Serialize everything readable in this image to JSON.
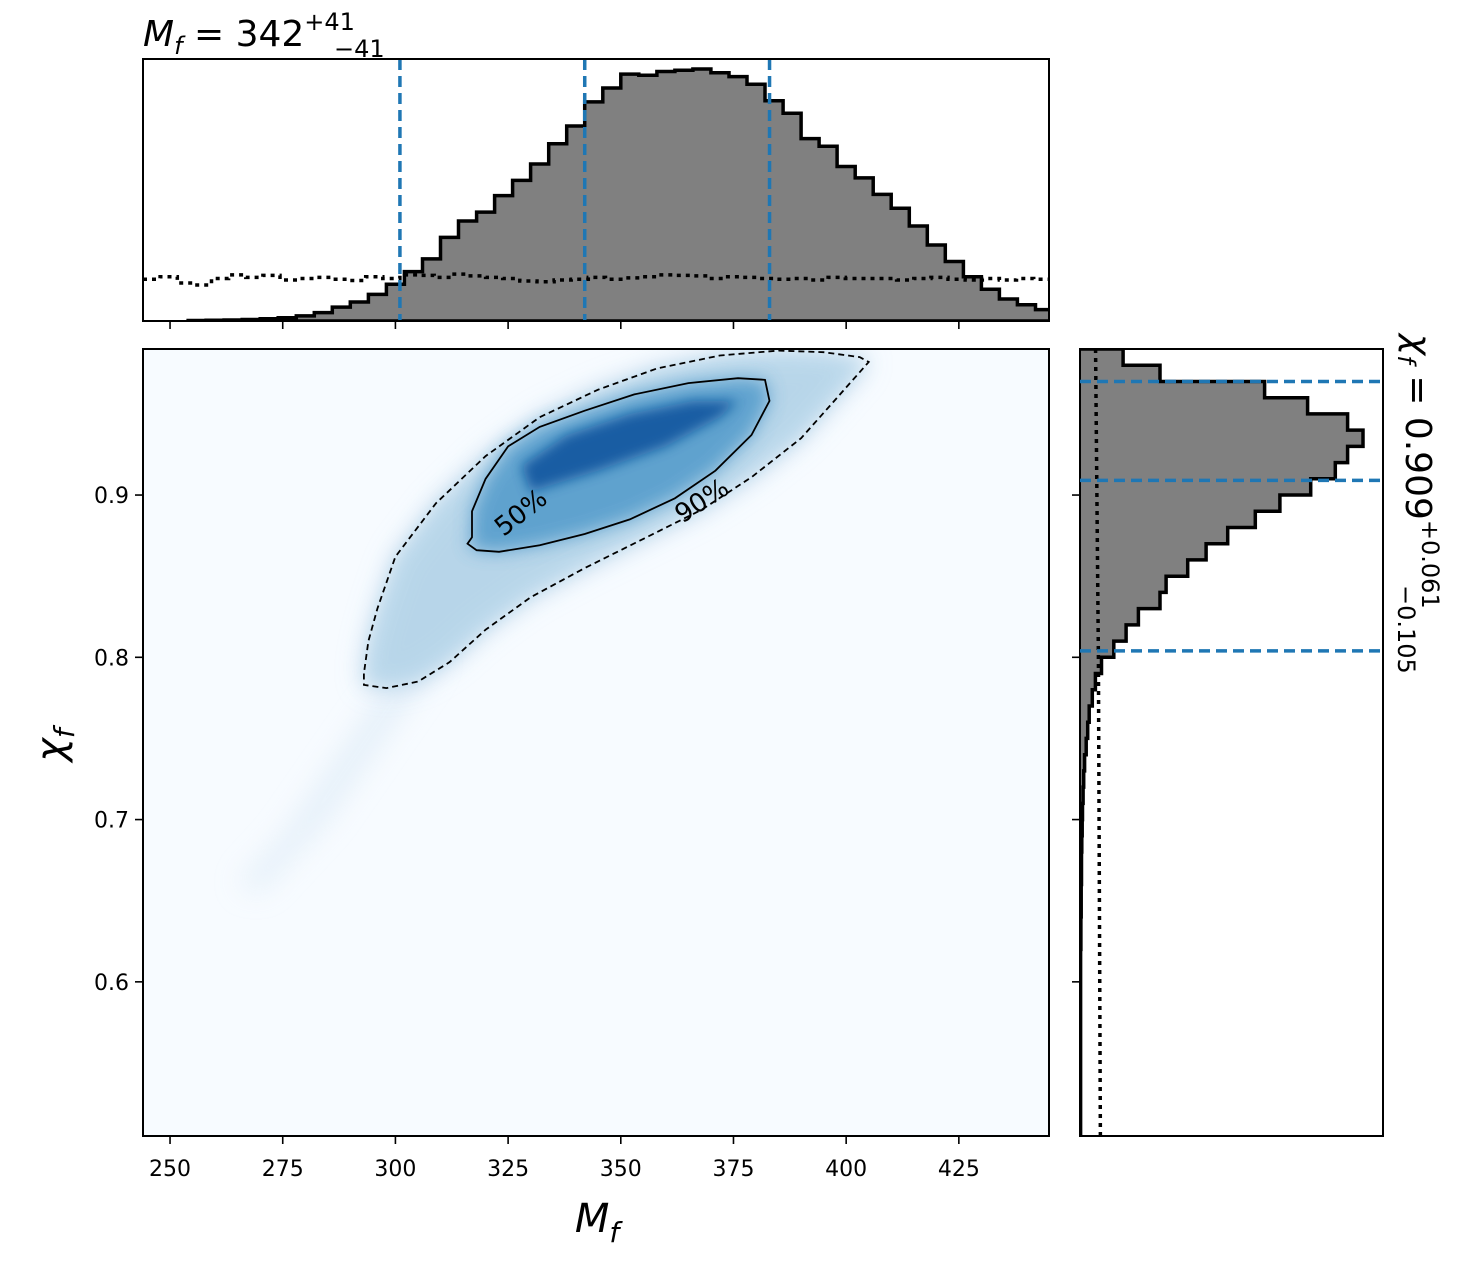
{
  "chart_data": [
    {
      "panel": "joint",
      "type": "heatmap",
      "xlabel": "M",
      "xlabel_sub": "f",
      "ylabel": "χ",
      "ylabel_sub": "f",
      "xlim": [
        244,
        445
      ],
      "ylim": [
        0.505,
        0.99
      ],
      "xticks": [
        250,
        275,
        300,
        325,
        350,
        375,
        400,
        425
      ],
      "xtick_labels": [
        "250",
        "275",
        "300",
        "325",
        "350",
        "375",
        "400",
        "425"
      ],
      "yticks": [
        0.6,
        0.7,
        0.8,
        0.9
      ],
      "ytick_labels": [
        "0.6",
        "0.7",
        "0.8",
        "0.9"
      ],
      "colormap": "Blues",
      "density_peak": {
        "x": 345,
        "y": 0.935
      },
      "contours": [
        {
          "label": "50%",
          "style": "solid",
          "points": [
            [
              317,
              0.874
            ],
            [
              316,
              0.87
            ],
            [
              318,
              0.866
            ],
            [
              323,
              0.865
            ],
            [
              332,
              0.869
            ],
            [
              342,
              0.876
            ],
            [
              352,
              0.885
            ],
            [
              362,
              0.898
            ],
            [
              371,
              0.915
            ],
            [
              379,
              0.937
            ],
            [
              383,
              0.958
            ],
            [
              382,
              0.971
            ],
            [
              376,
              0.972
            ],
            [
              365,
              0.969
            ],
            [
              353,
              0.962
            ],
            [
              342,
              0.952
            ],
            [
              332,
              0.942
            ],
            [
              325,
              0.93
            ],
            [
              320,
              0.91
            ],
            [
              317,
              0.89
            ],
            [
              317,
              0.874
            ]
          ]
        },
        {
          "label": "90%",
          "style": "dashed",
          "points": [
            [
              293,
              0.79
            ],
            [
              293,
              0.783
            ],
            [
              298,
              0.781
            ],
            [
              305,
              0.785
            ],
            [
              312,
              0.797
            ],
            [
              320,
              0.817
            ],
            [
              330,
              0.837
            ],
            [
              342,
              0.855
            ],
            [
              355,
              0.873
            ],
            [
              368,
              0.891
            ],
            [
              379,
              0.911
            ],
            [
              390,
              0.935
            ],
            [
              398,
              0.96
            ],
            [
              405,
              0.982
            ],
            [
              403,
              0.985
            ],
            [
              395,
              0.988
            ],
            [
              385,
              0.989
            ],
            [
              372,
              0.986
            ],
            [
              358,
              0.978
            ],
            [
              345,
              0.965
            ],
            [
              332,
              0.948
            ],
            [
              320,
              0.924
            ],
            [
              309,
              0.895
            ],
            [
              300,
              0.862
            ],
            [
              296,
              0.83
            ],
            [
              294,
              0.81
            ],
            [
              293,
              0.79
            ]
          ]
        }
      ]
    },
    {
      "panel": "top-marginal",
      "type": "bar",
      "title": "M",
      "title_sub": "f",
      "title_value": " = 342",
      "title_sup": "+41",
      "title_inf": "−41",
      "xlim": [
        244,
        445
      ],
      "bin_edges_start": 254,
      "bin_width": 4,
      "values": [
        0.002,
        0.003,
        0.004,
        0.006,
        0.009,
        0.013,
        0.02,
        0.033,
        0.055,
        0.075,
        0.105,
        0.145,
        0.195,
        0.245,
        0.33,
        0.395,
        0.43,
        0.495,
        0.555,
        0.62,
        0.7,
        0.77,
        0.865,
        0.92,
        0.975,
        0.97,
        0.985,
        0.99,
        0.995,
        0.98,
        0.965,
        0.935,
        0.87,
        0.82,
        0.72,
        0.69,
        0.61,
        0.565,
        0.5,
        0.445,
        0.375,
        0.3,
        0.235,
        0.175,
        0.125,
        0.087,
        0.064,
        0.045,
        0.032,
        0.024,
        0.016,
        0.011,
        0.007,
        0.004,
        0.002
      ],
      "prior": [
        0.165,
        0.175,
        0.15,
        0.142,
        0.168,
        0.182,
        0.172,
        0.18,
        0.162,
        0.168,
        0.172,
        0.165,
        0.16,
        0.175,
        0.168,
        0.182,
        0.18,
        0.172,
        0.185,
        0.178,
        0.172,
        0.168,
        0.158,
        0.155,
        0.162,
        0.165,
        0.172,
        0.165,
        0.17,
        0.175,
        0.182,
        0.18,
        0.178,
        0.168,
        0.175,
        0.172,
        0.168,
        0.165,
        0.168,
        0.162,
        0.172,
        0.168,
        0.168,
        0.168,
        0.162,
        0.168,
        0.172,
        0.165,
        0.162,
        0.168,
        0.162,
        0.168,
        0.165
      ],
      "prior_bin_width": 3.8,
      "credible_lines": [
        301,
        342,
        383
      ],
      "line_color": "#1f77b4",
      "hist_fill": "#808080"
    },
    {
      "panel": "right-marginal",
      "type": "bar",
      "orientation": "horizontal",
      "title": "χ",
      "title_sub": "f",
      "title_value": " = 0.909",
      "title_sup": "+0.061",
      "title_inf": "−0.105",
      "ylim": [
        0.505,
        0.99
      ],
      "bin_edges_start": 0.99,
      "bin_width": 0.01,
      "values": [
        0.14,
        0.26,
        0.6,
        0.74,
        0.87,
        0.92,
        0.87,
        0.83,
        0.75,
        0.65,
        0.57,
        0.48,
        0.41,
        0.35,
        0.28,
        0.26,
        0.19,
        0.15,
        0.11,
        0.07,
        0.05,
        0.04,
        0.03,
        0.025,
        0.02,
        0.015,
        0.012,
        0.01,
        0.008,
        0.007,
        0.006,
        0.005,
        0.005,
        0.004,
        0.004,
        0.003,
        0.003,
        0.002,
        0.002,
        0.002,
        0.002,
        0.002,
        0.002,
        0.002,
        0.002,
        0.002,
        0.002,
        0.002,
        0.002
      ],
      "prior_x": [
        0.055,
        0.065,
        0.072
      ],
      "credible_lines": [
        0.97,
        0.909,
        0.804
      ],
      "line_color": "#1f77b4",
      "hist_fill": "#808080"
    }
  ]
}
